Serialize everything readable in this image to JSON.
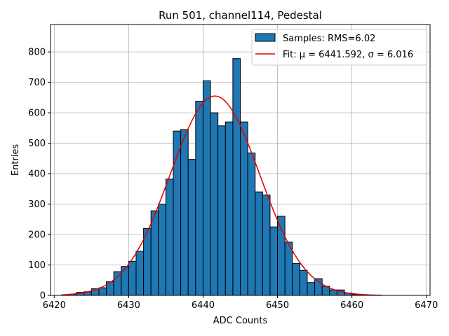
{
  "chart_data": {
    "type": "bar",
    "title": "Run 501, channel114, Pedestal",
    "xlabel": "ADC Counts",
    "ylabel": "Entries",
    "xlim": [
      6419.5,
      6470.5
    ],
    "ylim": [
      0,
      890
    ],
    "xticks": [
      6420,
      6430,
      6440,
      6450,
      6460,
      6470
    ],
    "yticks": [
      0,
      100,
      200,
      300,
      400,
      500,
      600,
      700,
      800
    ],
    "grid": true,
    "legend_position": "top-right",
    "bar_color": "#1f77b4",
    "fit_color": "#e00000",
    "bins": {
      "start": 6421,
      "width": 1,
      "values": [
        2,
        4,
        10,
        12,
        22,
        25,
        45,
        78,
        95,
        112,
        145,
        220,
        278,
        300,
        382,
        540,
        545,
        447,
        638,
        705,
        600,
        557,
        570,
        778,
        570,
        468,
        340,
        330,
        225,
        260,
        175,
        105,
        82,
        42,
        55,
        30,
        18,
        18,
        8,
        3,
        2,
        1,
        1
      ]
    },
    "fit": {
      "mu": 6441.592,
      "sigma": 6.016,
      "amplitude": 655,
      "x_range": [
        6421,
        6464
      ]
    },
    "series": [
      {
        "name": "Samples: RMS=6.02",
        "kind": "histogram"
      },
      {
        "name": "Fit: μ = 6441.592, σ = 6.016",
        "kind": "line"
      }
    ]
  }
}
